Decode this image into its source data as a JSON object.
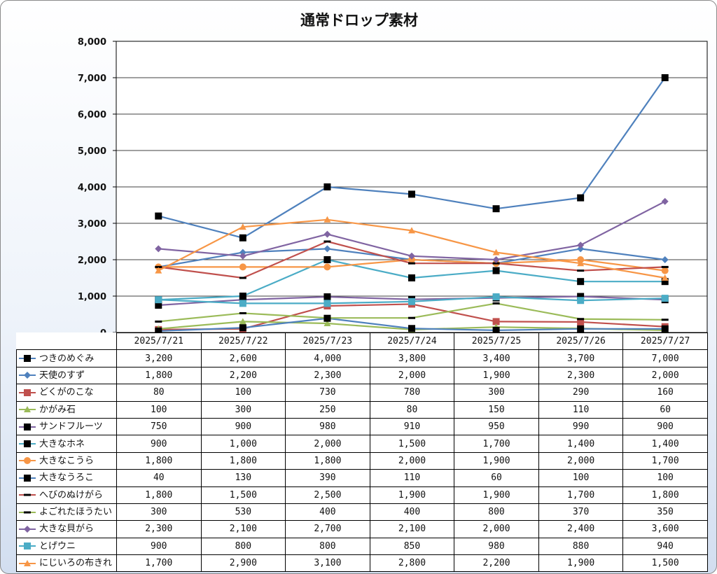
{
  "chart_data": {
    "type": "line",
    "title": "通常ドロップ素材",
    "categories": [
      "2025/7/21",
      "2025/7/22",
      "2025/7/23",
      "2025/7/24",
      "2025/7/25",
      "2025/7/26",
      "2025/7/27"
    ],
    "ylim": [
      0,
      8000
    ],
    "yticks": [
      "0",
      "1,000",
      "2,000",
      "3,000",
      "4,000",
      "5,000",
      "6,000",
      "7,000",
      "8,000"
    ],
    "grid": true,
    "legend": "data-table",
    "series": [
      {
        "name": "つきのめぐみ",
        "color": "#4f81bd",
        "marker": "square-black",
        "values": [
          3200,
          2600,
          4000,
          3800,
          3400,
          3700,
          7000
        ],
        "labels": [
          "3,200",
          "2,600",
          "4,000",
          "3,800",
          "3,400",
          "3,700",
          "7,000"
        ]
      },
      {
        "name": "天使のすず",
        "color": "#4f81bd",
        "marker": "diamond",
        "values": [
          1800,
          2200,
          2300,
          2000,
          1900,
          2300,
          2000
        ],
        "labels": [
          "1,800",
          "2,200",
          "2,300",
          "2,000",
          "1,900",
          "2,300",
          "2,000"
        ]
      },
      {
        "name": "どくがのこな",
        "color": "#c0504d",
        "marker": "square",
        "values": [
          80,
          100,
          730,
          780,
          300,
          290,
          160
        ],
        "labels": [
          "80",
          "100",
          "730",
          "780",
          "300",
          "290",
          "160"
        ]
      },
      {
        "name": "かがみ石",
        "color": "#9bbb59",
        "marker": "triangle",
        "values": [
          100,
          300,
          250,
          80,
          150,
          110,
          60
        ],
        "labels": [
          "100",
          "300",
          "250",
          "80",
          "150",
          "110",
          "60"
        ]
      },
      {
        "name": "サンドフルーツ",
        "color": "#8064a2",
        "marker": "square-black",
        "values": [
          750,
          900,
          980,
          910,
          950,
          990,
          900
        ],
        "labels": [
          "750",
          "900",
          "980",
          "910",
          "950",
          "990",
          "900"
        ]
      },
      {
        "name": "大きなホネ",
        "color": "#4bacc6",
        "marker": "square-black",
        "values": [
          900,
          1000,
          2000,
          1500,
          1700,
          1400,
          1400
        ],
        "labels": [
          "900",
          "1,000",
          "2,000",
          "1,500",
          "1,700",
          "1,400",
          "1,400"
        ]
      },
      {
        "name": "大きなこうら",
        "color": "#f79646",
        "marker": "circle",
        "values": [
          1800,
          1800,
          1800,
          2000,
          1900,
          2000,
          1700
        ],
        "labels": [
          "1,800",
          "1,800",
          "1,800",
          "2,000",
          "1,900",
          "2,000",
          "1,700"
        ]
      },
      {
        "name": "大きなうろこ",
        "color": "#4f81bd",
        "marker": "square-black",
        "values": [
          40,
          130,
          390,
          110,
          60,
          100,
          100
        ],
        "labels": [
          "40",
          "130",
          "390",
          "110",
          "60",
          "100",
          "100"
        ]
      },
      {
        "name": "へびのぬけがら",
        "color": "#c0504d",
        "marker": "dash-black",
        "values": [
          1800,
          1500,
          2500,
          1900,
          1900,
          1700,
          1800
        ],
        "labels": [
          "1,800",
          "1,500",
          "2,500",
          "1,900",
          "1,900",
          "1,700",
          "1,800"
        ]
      },
      {
        "name": "よごれたほうたい",
        "color": "#9bbb59",
        "marker": "dash-black",
        "values": [
          300,
          530,
          400,
          400,
          800,
          370,
          350
        ],
        "labels": [
          "300",
          "530",
          "400",
          "400",
          "800",
          "370",
          "350"
        ]
      },
      {
        "name": "大きな貝がら",
        "color": "#8064a2",
        "marker": "diamond",
        "values": [
          2300,
          2100,
          2700,
          2100,
          2000,
          2400,
          3600
        ],
        "labels": [
          "2,300",
          "2,100",
          "2,700",
          "2,100",
          "2,000",
          "2,400",
          "3,600"
        ]
      },
      {
        "name": "とげウニ",
        "color": "#4bacc6",
        "marker": "square",
        "values": [
          900,
          800,
          800,
          850,
          980,
          880,
          940
        ],
        "labels": [
          "900",
          "800",
          "800",
          "850",
          "980",
          "880",
          "940"
        ]
      },
      {
        "name": "にじいろの布きれ",
        "color": "#f79646",
        "marker": "triangle",
        "values": [
          1700,
          2900,
          3100,
          2800,
          2200,
          1900,
          1500
        ],
        "labels": [
          "1,700",
          "2,900",
          "3,100",
          "2,800",
          "2,200",
          "1,900",
          "1,500"
        ]
      }
    ]
  }
}
